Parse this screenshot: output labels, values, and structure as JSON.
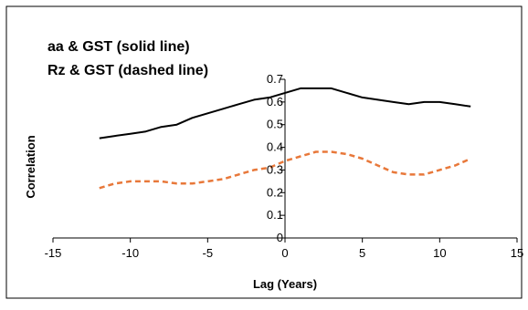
{
  "chart_data": {
    "type": "line",
    "title_lines": [
      "aa & GST (solid line)",
      "Rz & GST (dashed line)"
    ],
    "xlabel": "Lag (Years)",
    "ylabel": "Correlation",
    "xlim": [
      -15,
      15
    ],
    "ylim": [
      0,
      0.7
    ],
    "xticks": [
      -15,
      -10,
      -5,
      0,
      5,
      10,
      15
    ],
    "yticks": [
      0,
      0.1,
      0.2,
      0.3,
      0.4,
      0.5,
      0.6,
      0.7
    ],
    "grid": false,
    "series": [
      {
        "style": "solid",
        "color": "#000000",
        "x": [
          -12,
          -11,
          -10,
          -9,
          -8,
          -7,
          -6,
          -5,
          -4,
          -3,
          -2,
          -1,
          0,
          1,
          2,
          3,
          4,
          5,
          6,
          7,
          8,
          9,
          10,
          11,
          12
        ],
        "y": [
          0.44,
          0.45,
          0.46,
          0.47,
          0.49,
          0.5,
          0.53,
          0.55,
          0.57,
          0.59,
          0.61,
          0.62,
          0.64,
          0.66,
          0.66,
          0.66,
          0.64,
          0.62,
          0.61,
          0.6,
          0.59,
          0.6,
          0.6,
          0.59,
          0.58
        ]
      },
      {
        "style": "dashed",
        "color": "#e8783a",
        "x": [
          -12,
          -11,
          -10,
          -9,
          -8,
          -7,
          -6,
          -5,
          -4,
          -3,
          -2,
          -1,
          0,
          1,
          2,
          3,
          4,
          5,
          6,
          7,
          8,
          9,
          10,
          11,
          12
        ],
        "y": [
          0.22,
          0.24,
          0.25,
          0.25,
          0.25,
          0.24,
          0.24,
          0.25,
          0.26,
          0.28,
          0.3,
          0.31,
          0.34,
          0.36,
          0.38,
          0.38,
          0.37,
          0.35,
          0.32,
          0.29,
          0.28,
          0.28,
          0.3,
          0.32,
          0.35
        ]
      }
    ]
  }
}
